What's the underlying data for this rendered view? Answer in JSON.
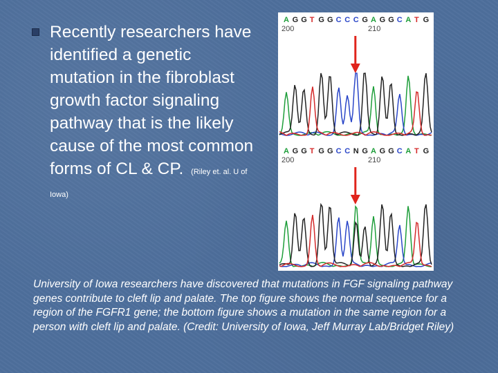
{
  "slide": {
    "main_text": "Recently researchers have identified a genetic mutation in the fibroblast growth factor signaling pathway that is the likely cause of the most common forms of CL & CP.",
    "citation": "(Riley et. al. U of Iowa)",
    "caption": "University of Iowa researchers have discovered that mutations in FGF signaling pathway genes contribute to cleft lip and palate. The top figure shows the normal sequence for a region of the FGFR1 gene; the bottom figure shows a mutation in the same region for a person with cleft lip and palate. (Credit: University of Iowa, Jeff Murray Lab/Bridget Riley)"
  },
  "figure": {
    "top_panel": {
      "bases": [
        "A",
        "G",
        "G",
        "T",
        "G",
        "G",
        "C",
        "C",
        "C",
        "G",
        "A",
        "G",
        "G",
        "C",
        "A",
        "T",
        "G"
      ],
      "position_labels": [
        "200",
        "210"
      ]
    },
    "bottom_panel": {
      "bases": [
        "A",
        "G",
        "G",
        "T",
        "G",
        "G",
        "C",
        "C",
        "N",
        "G",
        "A",
        "G",
        "G",
        "C",
        "A",
        "T",
        "G"
      ],
      "position_labels": [
        "200",
        "210"
      ]
    },
    "colors": {
      "A": "#1e9e3a",
      "G": "#222222",
      "C": "#2a46c8",
      "T": "#d42a2a",
      "N": "#222222",
      "arrow": "#e0241c",
      "label": "#444444"
    }
  }
}
